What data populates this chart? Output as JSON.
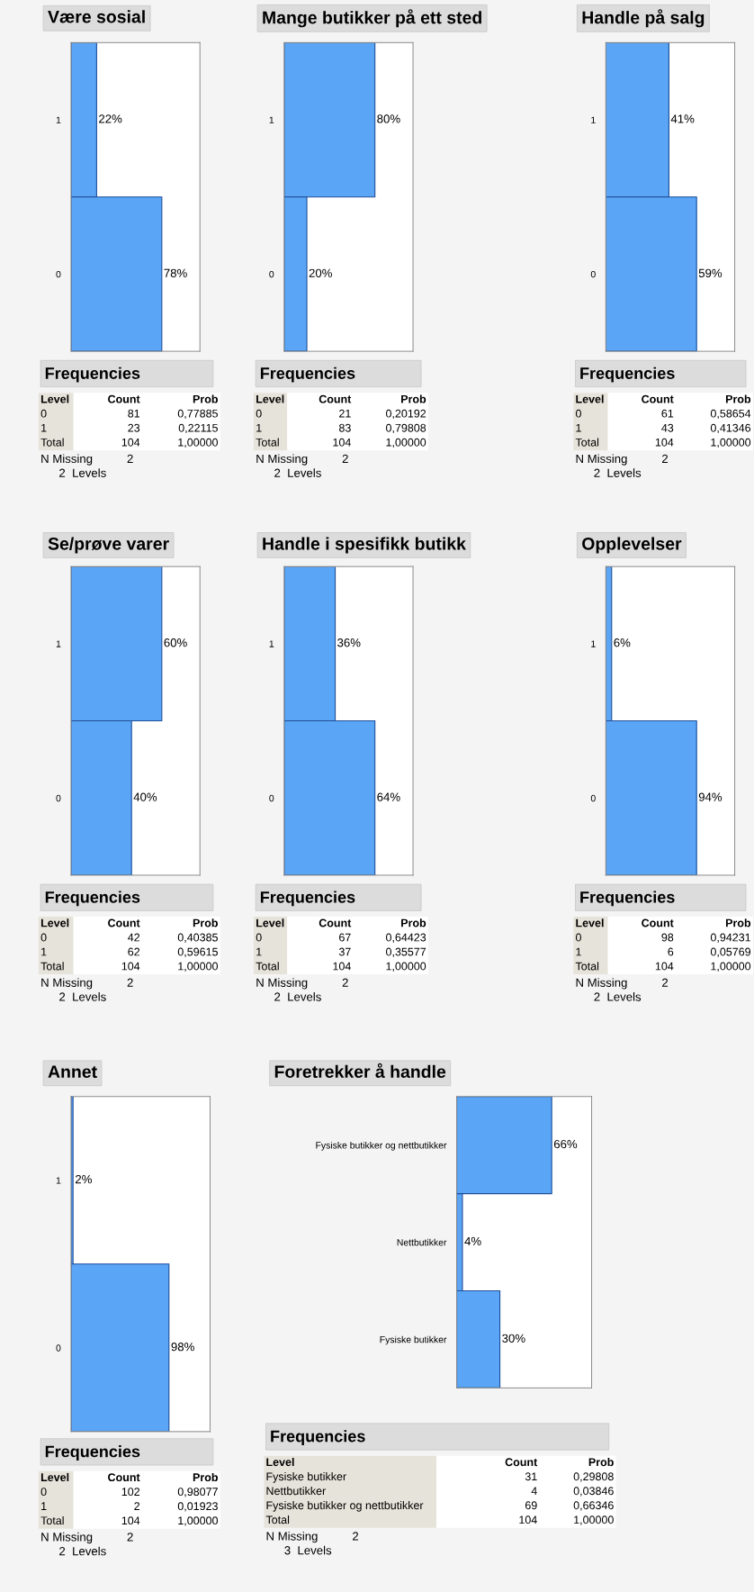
{
  "chart_data": [
    {
      "type": "bar",
      "orientation": "horizontal",
      "title": "Være sosial",
      "categories": [
        "1",
        "0"
      ],
      "values": [
        22,
        78
      ],
      "value_labels": [
        "22%",
        "78%"
      ],
      "color": "#5aa5f5",
      "legend": false,
      "grid": false,
      "annotations": [
        "Frequencies",
        "Level",
        "Count",
        "Prob",
        "0",
        "81",
        "0,77885",
        "1",
        "23",
        "0,22115",
        "Total",
        "104",
        "1,00000",
        "N Missing",
        "2",
        "2  Levels"
      ]
    },
    {
      "type": "bar",
      "orientation": "horizontal",
      "title": "Mange butikker på ett sted",
      "categories": [
        "1",
        "0"
      ],
      "values": [
        80,
        20
      ],
      "value_labels": [
        "80%",
        "20%"
      ],
      "color": "#5aa5f5",
      "legend": false,
      "grid": false,
      "annotations": [
        "Frequencies",
        "Level",
        "Count",
        "Prob",
        "0",
        "21",
        "0,20192",
        "1",
        "83",
        "0,79808",
        "Total",
        "104",
        "1,00000",
        "N Missing",
        "2",
        "2  Levels"
      ]
    },
    {
      "type": "bar",
      "orientation": "horizontal",
      "title": "Handle på salg",
      "categories": [
        "1",
        "0"
      ],
      "values": [
        41,
        59
      ],
      "value_labels": [
        "41%",
        "59%"
      ],
      "color": "#5aa5f5",
      "legend": false,
      "grid": false,
      "annotations": [
        "Frequencies",
        "Level",
        "Count",
        "Prob",
        "0",
        "61",
        "0,58654",
        "1",
        "43",
        "0,41346",
        "Total",
        "104",
        "1,00000",
        "N Missing",
        "2",
        "2  Levels"
      ]
    },
    {
      "type": "bar",
      "orientation": "horizontal",
      "title": "Se/prøve varer",
      "categories": [
        "1",
        "0"
      ],
      "values": [
        60,
        40
      ],
      "value_labels": [
        "60%",
        "40%"
      ],
      "color": "#5aa5f5",
      "legend": false,
      "grid": false,
      "annotations": [
        "Frequencies",
        "Level",
        "Count",
        "Prob",
        "0",
        "42",
        "0,40385",
        "1",
        "62",
        "0,59615",
        "Total",
        "104",
        "1,00000",
        "N Missing",
        "2",
        "2  Levels"
      ]
    },
    {
      "type": "bar",
      "orientation": "horizontal",
      "title": "Handle i spesifikk butikk",
      "categories": [
        "1",
        "0"
      ],
      "values": [
        36,
        64
      ],
      "value_labels": [
        "36%",
        "64%"
      ],
      "color": "#5aa5f5",
      "legend": false,
      "grid": false,
      "annotations": [
        "Frequencies",
        "Level",
        "Count",
        "Prob",
        "0",
        "67",
        "0,64423",
        "1",
        "37",
        "0,35577",
        "Total",
        "104",
        "1,00000",
        "N Missing",
        "2",
        "2  Levels"
      ]
    },
    {
      "type": "bar",
      "orientation": "horizontal",
      "title": "Opplevelser",
      "categories": [
        "1",
        "0"
      ],
      "values": [
        6,
        94
      ],
      "value_labels": [
        "6%",
        "94%"
      ],
      "color": "#5aa5f5",
      "legend": false,
      "grid": false,
      "annotations": [
        "Frequencies",
        "Level",
        "Count",
        "Prob",
        "0",
        "98",
        "0,94231",
        "1",
        "6",
        "0,05769",
        "Total",
        "104",
        "1,00000",
        "N Missing",
        "2",
        "2  Levels"
      ]
    },
    {
      "type": "bar",
      "orientation": "horizontal",
      "title": "Annet",
      "categories": [
        "1",
        "0"
      ],
      "values": [
        2,
        98
      ],
      "value_labels": [
        "2%",
        "98%"
      ],
      "color": "#5aa5f5",
      "legend": false,
      "grid": false,
      "annotations": [
        "Frequencies",
        "Level",
        "Count",
        "Prob",
        "0",
        "102",
        "0,98077",
        "1",
        "2",
        "0,01923",
        "Total",
        "104",
        "1,00000",
        "N Missing",
        "2",
        "2  Levels"
      ]
    },
    {
      "type": "bar",
      "orientation": "horizontal",
      "title": "Foretrekker å handle",
      "categories": [
        "Fysiske butikker og nettbutikker",
        "Nettbutikker",
        "Fysiske butikker"
      ],
      "values": [
        66,
        4,
        30
      ],
      "value_labels": [
        "66%",
        "4%",
        "30%"
      ],
      "color": "#5aa5f5",
      "legend": false,
      "grid": false,
      "annotations": [
        "Frequencies",
        "Level",
        "Count",
        "Prob",
        "Fysiske butikker",
        "31",
        "0,29808",
        "Nettbutikker",
        "4",
        "0,03846",
        "Fysiske butikker og nettbutikker",
        "69",
        "0,66346",
        "Total",
        "104",
        "1,00000",
        "N Missing",
        "2",
        "3  Levels"
      ]
    }
  ]
}
